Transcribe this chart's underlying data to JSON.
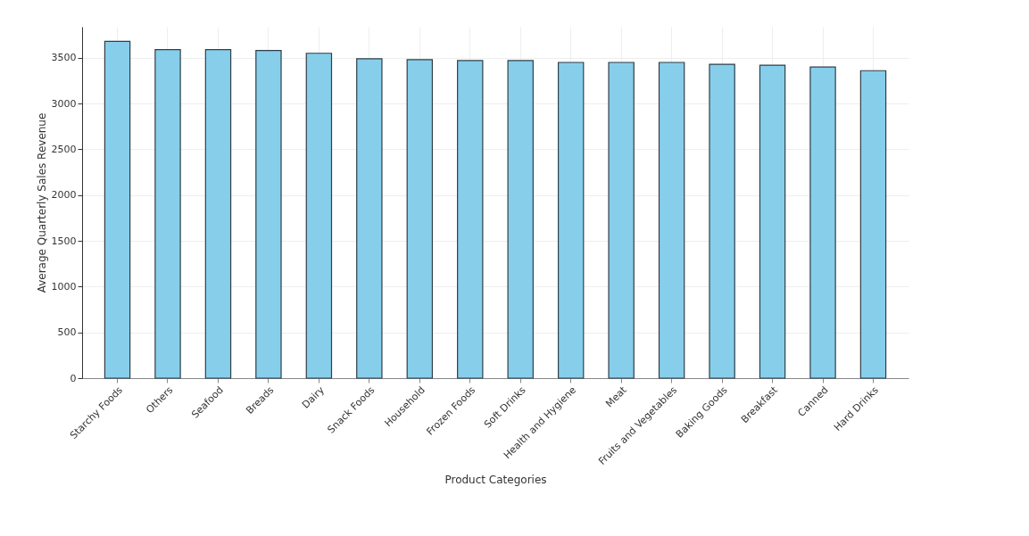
{
  "chart_data": {
    "type": "bar",
    "xlabel": "Product Categories",
    "ylabel": "Average Quarterly Sales Revenue",
    "categories": [
      "Starchy Foods",
      "Others",
      "Seafood",
      "Breads",
      "Dairy",
      "Snack Foods",
      "Household",
      "Frozen Foods",
      "Soft Drinks",
      "Health and Hygiene",
      "Meat",
      "Fruits and Vegetables",
      "Baking Goods",
      "Breakfast",
      "Canned",
      "Hard Drinks"
    ],
    "values": [
      3680,
      3590,
      3590,
      3580,
      3550,
      3490,
      3480,
      3470,
      3470,
      3450,
      3450,
      3450,
      3430,
      3420,
      3400,
      3360
    ],
    "color": "#87ceeb",
    "ylim": [
      0,
      3840
    ],
    "yticks": [
      0,
      500,
      1000,
      1500,
      2000,
      2500,
      3000,
      3500
    ],
    "grid": true
  }
}
